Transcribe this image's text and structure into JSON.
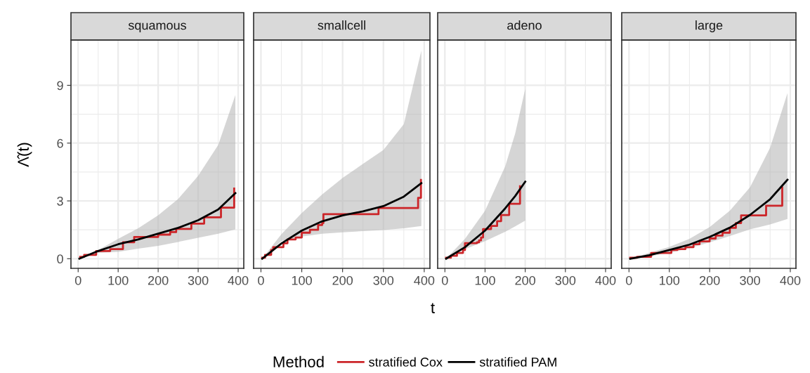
{
  "chart_data": [
    {
      "type": "line",
      "title": "squamous",
      "ylabel": "Λ̂(t)",
      "legend_title": "Method",
      "legend": "bottom",
      "grid": true,
      "xlim": [
        -18,
        414
      ],
      "ylim": [
        -0.5,
        11.35
      ],
      "xticks": [
        0,
        100,
        200,
        300,
        400
      ],
      "yticks": [
        0,
        3,
        6,
        9
      ],
      "series": [
        {
          "name": "stratified Cox",
          "type": "step",
          "color": "#cc2529",
          "x": [
            5,
            15,
            45,
            80,
            112,
            140,
            200,
            230,
            245,
            283,
            315,
            357,
            390
          ],
          "values": [
            0.1,
            0.2,
            0.4,
            0.5,
            0.85,
            1.13,
            1.25,
            1.38,
            1.55,
            1.82,
            2.15,
            2.65,
            3.64
          ]
        },
        {
          "name": "stratified PAM",
          "color": "#000000",
          "x": [
            3,
            50,
            100,
            150,
            200,
            250,
            300,
            350,
            393
          ],
          "values": [
            0,
            0.4,
            0.75,
            1.0,
            1.3,
            1.6,
            2.0,
            2.55,
            3.4
          ],
          "lower": [
            0,
            0.3,
            0.36,
            0.52,
            0.67,
            0.87,
            1.09,
            1.3,
            1.52
          ],
          "upper": [
            0,
            0.45,
            1.03,
            1.58,
            2.25,
            3.1,
            4.3,
            5.9,
            8.5
          ]
        }
      ]
    },
    {
      "type": "line",
      "title": "smallcell",
      "xlabel": "t",
      "grid": true,
      "tick_labels": "x",
      "xlim": [
        -18,
        414
      ],
      "ylim": [
        -0.5,
        11.35
      ],
      "xticks": [
        0,
        100,
        200,
        300,
        400
      ],
      "yticks": [
        0,
        3,
        6,
        9
      ],
      "series": [
        {
          "type": "step",
          "color": "#cc2529",
          "x": [
            3,
            10,
            25,
            30,
            55,
            65,
            85,
            100,
            120,
            140,
            150,
            153,
            288,
            385,
            392
          ],
          "values": [
            0.05,
            0.2,
            0.45,
            0.6,
            0.8,
            1.0,
            1.1,
            1.35,
            1.5,
            1.75,
            1.85,
            2.31,
            2.63,
            3.16,
            4.09
          ]
        },
        {
          "color": "#000000",
          "x": [
            3,
            50,
            100,
            150,
            200,
            250,
            300,
            350,
            393
          ],
          "values": [
            0,
            0.79,
            1.46,
            1.94,
            2.25,
            2.46,
            2.73,
            3.22,
            3.92
          ],
          "lower": [
            0,
            0.91,
            1.15,
            1.3,
            1.37,
            1.43,
            1.49,
            1.58,
            1.7
          ],
          "upper": [
            0,
            1.27,
            2.37,
            3.34,
            4.19,
            4.92,
            5.64,
            6.98,
            10.8
          ]
        }
      ]
    },
    {
      "type": "line",
      "title": "adeno",
      "grid": true,
      "tick_labels": "x",
      "xlim": [
        -18,
        414
      ],
      "ylim": [
        -0.5,
        11.35
      ],
      "xticks": [
        0,
        100,
        200,
        300,
        400
      ],
      "yticks": [
        0,
        3,
        6,
        9
      ],
      "series": [
        {
          "type": "step",
          "color": "#cc2529",
          "x": [
            3,
            15,
            30,
            45,
            50,
            80,
            85,
            90,
            95,
            115,
            130,
            140,
            160,
            187
          ],
          "values": [
            0.05,
            0.15,
            0.3,
            0.45,
            0.81,
            0.85,
            0.95,
            1.1,
            1.54,
            1.7,
            1.95,
            2.27,
            2.85,
            3.76
          ]
        },
        {
          "color": "#000000",
          "x": [
            3,
            50,
            100,
            150,
            175,
            200
          ],
          "values": [
            0,
            0.6,
            1.46,
            2.61,
            3.25,
            4.0
          ],
          "lower": [
            0,
            0.49,
            0.91,
            1.4,
            1.68,
            1.98
          ],
          "upper": [
            0,
            1.03,
            2.49,
            4.79,
            6.5,
            8.82
          ]
        }
      ]
    },
    {
      "type": "line",
      "title": "large",
      "grid": true,
      "tick_labels": "x",
      "xlim": [
        -18,
        414
      ],
      "ylim": [
        -0.5,
        11.35
      ],
      "xticks": [
        0,
        100,
        200,
        300,
        400
      ],
      "yticks": [
        0,
        3,
        6,
        9
      ],
      "series": [
        {
          "type": "step",
          "color": "#cc2529",
          "x": [
            3,
            20,
            55,
            105,
            120,
            140,
            160,
            175,
            200,
            215,
            232,
            250,
            265,
            278,
            340,
            380
          ],
          "values": [
            0.05,
            0.1,
            0.3,
            0.45,
            0.5,
            0.6,
            0.75,
            0.9,
            1.05,
            1.2,
            1.35,
            1.6,
            1.85,
            2.25,
            2.75,
            3.7
          ]
        },
        {
          "color": "#000000",
          "x": [
            3,
            50,
            100,
            150,
            200,
            250,
            300,
            350,
            393
          ],
          "values": [
            0,
            0.18,
            0.45,
            0.73,
            1.13,
            1.61,
            2.27,
            3.09,
            4.1
          ],
          "lower": [
            0,
            0.12,
            0.3,
            0.55,
            0.85,
            1.18,
            1.52,
            1.78,
            2.06
          ],
          "upper": [
            0,
            0.3,
            0.61,
            1.03,
            1.64,
            2.49,
            3.7,
            5.76,
            8.6
          ]
        }
      ]
    }
  ]
}
